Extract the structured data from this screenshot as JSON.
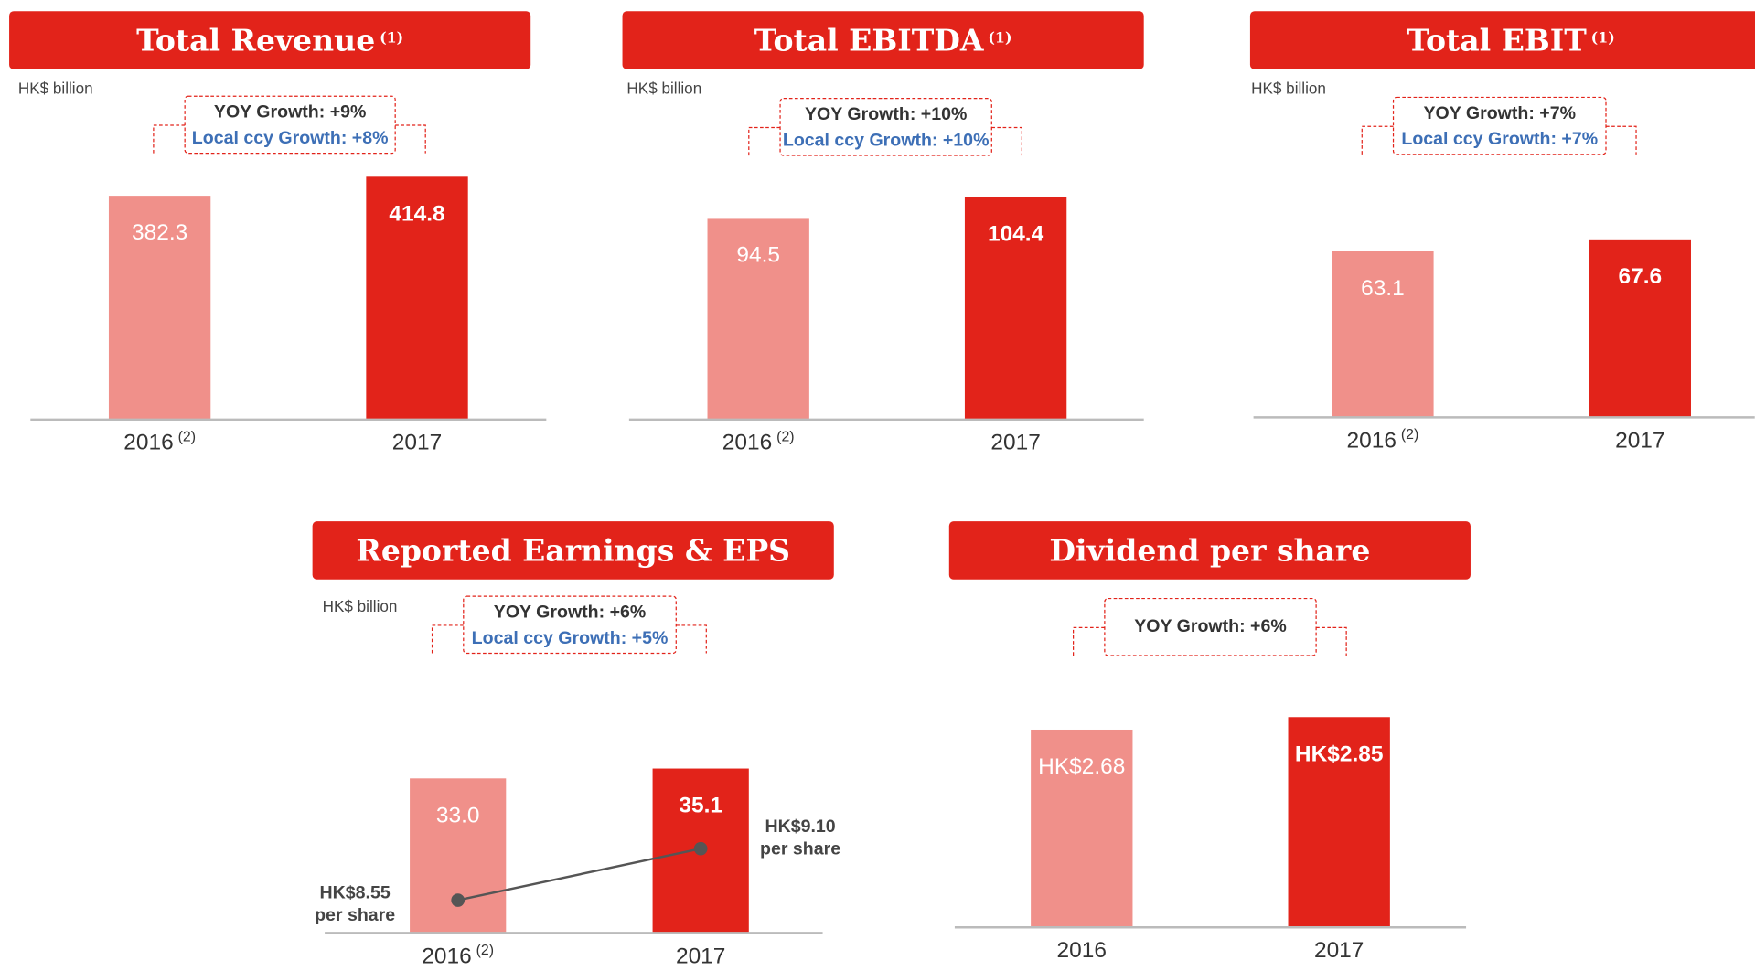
{
  "chart_data": [
    {
      "type": "bar",
      "title": "Total Revenue",
      "title_note": "(1)",
      "unit": "HK$ billion",
      "annotations": [
        "YOY Growth:  +9%",
        "Local ccy Growth: +8%"
      ],
      "categories": [
        "2016",
        "2017"
      ],
      "category_notes": [
        "(2)",
        null
      ],
      "values": [
        382.3,
        414.8
      ],
      "colors": [
        "#f0908a",
        "#e2231a"
      ]
    },
    {
      "type": "bar",
      "title": "Total EBITDA",
      "title_note": "(1)",
      "unit": "HK$ billion",
      "annotations": [
        "YOY Growth:  +10%",
        "Local ccy Growth: +10%"
      ],
      "categories": [
        "2016",
        "2017"
      ],
      "category_notes": [
        "(2)",
        null
      ],
      "values": [
        94.5,
        104.4
      ],
      "colors": [
        "#f0908a",
        "#e2231a"
      ]
    },
    {
      "type": "bar",
      "title": "Total EBIT",
      "title_note": "(1)",
      "unit": "HK$ billion",
      "annotations": [
        "YOY Growth:  +7%",
        "Local ccy Growth: +7%"
      ],
      "categories": [
        "2016",
        "2017"
      ],
      "category_notes": [
        "(2)",
        null
      ],
      "values": [
        63.1,
        67.6
      ],
      "colors": [
        "#f0908a",
        "#e2231a"
      ]
    },
    {
      "type": "bar",
      "title": "Reported Earnings & EPS",
      "unit": "HK$ billion",
      "annotations": [
        "YOY Growth:  +6%",
        "Local ccy Growth: +5%"
      ],
      "categories": [
        "2016",
        "2017"
      ],
      "category_notes": [
        "(2)",
        null
      ],
      "values": [
        33.0,
        35.1
      ],
      "value_labels": [
        "33.0",
        "35.1"
      ],
      "colors": [
        "#f0908a",
        "#e2231a"
      ],
      "eps": {
        "values": [
          8.55,
          9.1
        ],
        "value_labels": [
          "HK$8.55",
          "HK$9.10"
        ],
        "suffix": "per share",
        "color": "#555555"
      }
    },
    {
      "type": "bar",
      "title": "Dividend per share",
      "annotations": [
        "YOY Growth:  +6%"
      ],
      "categories": [
        "2016",
        "2017"
      ],
      "values": [
        2.68,
        2.85
      ],
      "value_labels": [
        "HK$2.68",
        "HK$2.85"
      ],
      "colors": [
        "#f0908a",
        "#e2231a"
      ]
    }
  ]
}
